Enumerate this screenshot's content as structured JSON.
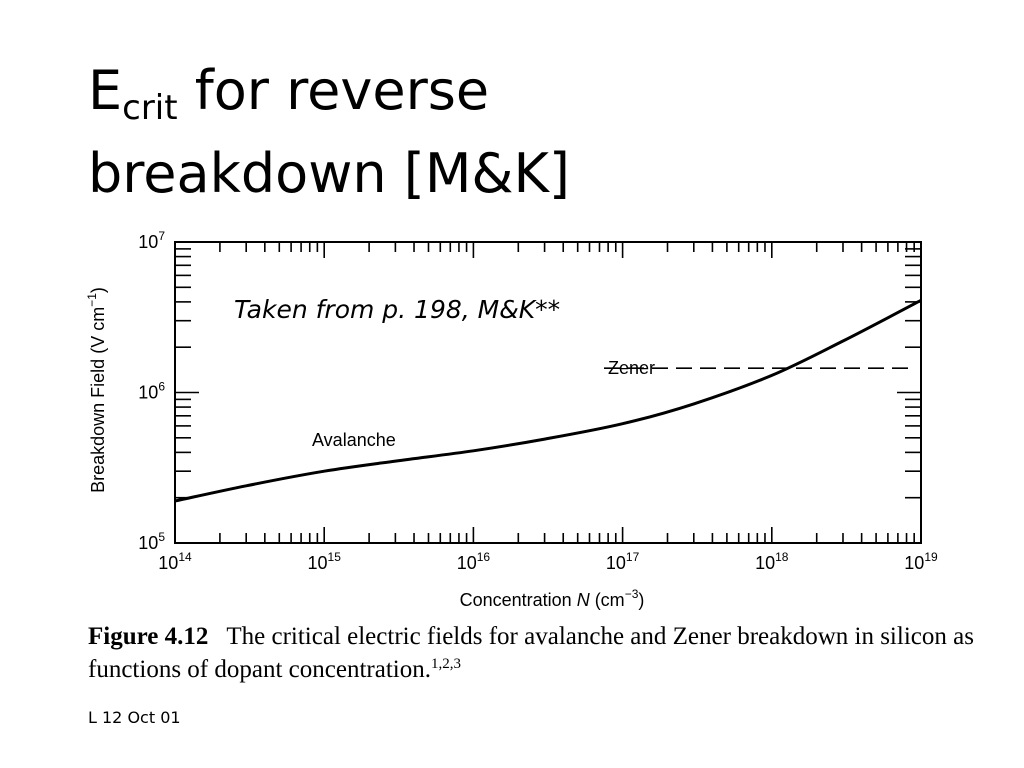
{
  "slide": {
    "title_main": "E",
    "title_sub": "crit",
    "title_rest": " for reverse",
    "title_line2": "breakdown [M&K]",
    "footer": "L 12 Oct 01"
  },
  "caption": {
    "figure_number": "Figure 4.12",
    "text": "The critical electric fields for avalanche and Zener breakdown in silicon as functions of dopant concentration.",
    "superscript": "1,2,3"
  },
  "chart_data": {
    "type": "line",
    "note": "Taken from p. 198, M&K**",
    "xlabel_prefix": "Concentration ",
    "xlabel_var": "N",
    "xlabel_unit_open": " (cm",
    "xlabel_unit_exp": "−3",
    "xlabel_unit_close": ")",
    "ylabel_prefix": "Breakdown Field (V cm",
    "ylabel_exp": "−1",
    "ylabel_close": ")",
    "x_scale": "log",
    "y_scale": "log",
    "xlim": [
      100000000000000.0,
      1e+19
    ],
    "ylim": [
      100000.0,
      10000000.0
    ],
    "x_ticks": [
      {
        "value": 100000000000000.0,
        "base": "10",
        "exp": "14"
      },
      {
        "value": 1000000000000000.0,
        "base": "10",
        "exp": "15"
      },
      {
        "value": 1e+16,
        "base": "10",
        "exp": "16"
      },
      {
        "value": 1e+17,
        "base": "10",
        "exp": "17"
      },
      {
        "value": 1e+18,
        "base": "10",
        "exp": "18"
      },
      {
        "value": 1e+19,
        "base": "10",
        "exp": "19"
      }
    ],
    "y_ticks": [
      {
        "value": 100000.0,
        "base": "10",
        "exp": "5"
      },
      {
        "value": 1000000.0,
        "base": "10",
        "exp": "6"
      },
      {
        "value": 10000000.0,
        "base": "10",
        "exp": "7"
      }
    ],
    "series": [
      {
        "name": "Avalanche",
        "style": "solid",
        "color": "#000000",
        "x": [
          100000000000000.0,
          300000000000000.0,
          1000000000000000.0,
          3000000000000000.0,
          1e+16,
          3e+16,
          1e+17,
          3e+17,
          1e+18,
          3e+18,
          1e+19
        ],
        "y": [
          190000,
          240000,
          300000,
          350000,
          410000,
          490000,
          620000,
          840000,
          1300000,
          2200000,
          4100000
        ]
      },
      {
        "name": "Zener",
        "style": "dashed",
        "color": "#000000",
        "x": [
          7.5e+16,
          9e+18
        ],
        "y": [
          1450000,
          1450000
        ]
      }
    ],
    "grid": false
  }
}
